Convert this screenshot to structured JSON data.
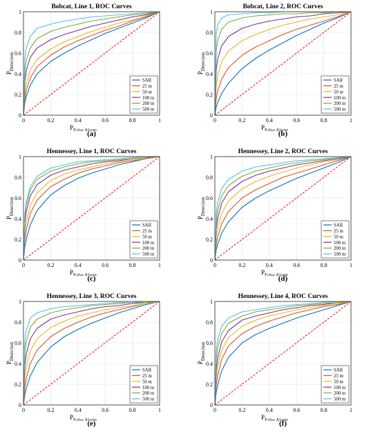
{
  "legend_labels": [
    "SAR",
    "25 m",
    "50 m",
    "100 m",
    "200 m",
    "500 m"
  ],
  "series_colors": [
    "#0072BD",
    "#D95319",
    "#EDB120",
    "#7E2F8E",
    "#77AC30",
    "#4DBEEE"
  ],
  "reference_line_color": "#FF0000",
  "x_ticks": [
    "0",
    "0.2",
    "0.4",
    "0.6",
    "0.8",
    "1"
  ],
  "y_ticks": [
    "0",
    "0.2",
    "0.4",
    "0.6",
    "0.8",
    "1"
  ],
  "xlabel_main": "P",
  "xlabel_sub": "False Alarm",
  "ylabel_main": "P",
  "ylabel_sub": "Detection",
  "chart_data": [
    {
      "type": "line",
      "title": "Bobcat, Line 1, ROC Curves",
      "caption": "(a)",
      "xlim": [
        0,
        1
      ],
      "ylim": [
        0,
        1
      ],
      "grid": true,
      "legend": "bottom-right",
      "x": [
        0,
        0.01,
        0.02,
        0.05,
        0.1,
        0.2,
        0.3,
        0.4,
        0.5,
        0.6,
        0.7,
        0.8,
        0.9,
        1
      ],
      "series": [
        {
          "name": "SAR",
          "values": [
            0,
            0.12,
            0.18,
            0.29,
            0.4,
            0.52,
            0.6,
            0.67,
            0.73,
            0.79,
            0.84,
            0.89,
            0.94,
            1
          ]
        },
        {
          "name": "25 m",
          "values": [
            0,
            0.16,
            0.24,
            0.36,
            0.47,
            0.58,
            0.66,
            0.72,
            0.77,
            0.82,
            0.86,
            0.91,
            0.95,
            1
          ]
        },
        {
          "name": "50 m",
          "values": [
            0,
            0.22,
            0.31,
            0.44,
            0.54,
            0.64,
            0.71,
            0.76,
            0.81,
            0.85,
            0.89,
            0.92,
            0.96,
            1
          ]
        },
        {
          "name": "100 m",
          "values": [
            0,
            0.33,
            0.43,
            0.56,
            0.65,
            0.73,
            0.78,
            0.82,
            0.86,
            0.89,
            0.92,
            0.95,
            0.97,
            1
          ]
        },
        {
          "name": "200 m",
          "values": [
            0,
            0.42,
            0.53,
            0.65,
            0.74,
            0.81,
            0.85,
            0.88,
            0.91,
            0.93,
            0.95,
            0.97,
            0.98,
            1
          ]
        },
        {
          "name": "500 m",
          "values": [
            0,
            0.55,
            0.65,
            0.76,
            0.84,
            0.88,
            0.91,
            0.93,
            0.95,
            0.96,
            0.97,
            0.98,
            0.99,
            1
          ]
        }
      ]
    },
    {
      "type": "line",
      "title": "Bobcat, Line 2, ROC Curves",
      "caption": "(b)",
      "xlim": [
        0,
        1
      ],
      "ylim": [
        0,
        1
      ],
      "grid": true,
      "legend": "bottom-right",
      "x": [
        0,
        0.01,
        0.02,
        0.05,
        0.1,
        0.2,
        0.3,
        0.4,
        0.5,
        0.6,
        0.7,
        0.8,
        0.9,
        1
      ],
      "series": [
        {
          "name": "SAR",
          "values": [
            0,
            0.08,
            0.12,
            0.21,
            0.31,
            0.45,
            0.55,
            0.63,
            0.7,
            0.77,
            0.83,
            0.89,
            0.94,
            1
          ]
        },
        {
          "name": "25 m",
          "values": [
            0,
            0.16,
            0.23,
            0.35,
            0.46,
            0.58,
            0.66,
            0.72,
            0.78,
            0.83,
            0.87,
            0.91,
            0.95,
            1
          ]
        },
        {
          "name": "50 m",
          "values": [
            0,
            0.28,
            0.38,
            0.52,
            0.62,
            0.72,
            0.78,
            0.83,
            0.87,
            0.9,
            0.93,
            0.95,
            0.97,
            1
          ]
        },
        {
          "name": "100 m",
          "values": [
            0,
            0.44,
            0.54,
            0.67,
            0.76,
            0.84,
            0.88,
            0.91,
            0.93,
            0.95,
            0.96,
            0.98,
            0.99,
            1
          ]
        },
        {
          "name": "200 m",
          "values": [
            0,
            0.62,
            0.72,
            0.83,
            0.9,
            0.94,
            0.96,
            0.97,
            0.98,
            0.98,
            0.99,
            0.99,
            1.0,
            1
          ]
        },
        {
          "name": "500 m",
          "values": [
            0,
            0.78,
            0.87,
            0.94,
            0.97,
            0.98,
            0.99,
            0.99,
            1.0,
            1.0,
            1.0,
            1.0,
            1.0,
            1
          ]
        }
      ]
    },
    {
      "type": "line",
      "title": "Hennessey, Line 1, ROC Curves",
      "caption": "(c)",
      "xlim": [
        0,
        1
      ],
      "ylim": [
        0,
        1
      ],
      "grid": true,
      "legend": "bottom-right",
      "x": [
        0,
        0.01,
        0.02,
        0.05,
        0.1,
        0.2,
        0.3,
        0.4,
        0.5,
        0.6,
        0.7,
        0.8,
        0.9,
        1
      ],
      "series": [
        {
          "name": "SAR",
          "values": [
            0,
            0.13,
            0.2,
            0.34,
            0.48,
            0.63,
            0.72,
            0.79,
            0.84,
            0.88,
            0.92,
            0.95,
            0.98,
            1
          ]
        },
        {
          "name": "25 m",
          "values": [
            0,
            0.2,
            0.29,
            0.45,
            0.58,
            0.71,
            0.78,
            0.84,
            0.88,
            0.91,
            0.94,
            0.96,
            0.98,
            1
          ]
        },
        {
          "name": "50 m",
          "values": [
            0,
            0.27,
            0.37,
            0.53,
            0.65,
            0.77,
            0.83,
            0.87,
            0.9,
            0.93,
            0.95,
            0.97,
            0.99,
            1
          ]
        },
        {
          "name": "100 m",
          "values": [
            0,
            0.36,
            0.47,
            0.62,
            0.73,
            0.82,
            0.87,
            0.9,
            0.93,
            0.95,
            0.96,
            0.98,
            0.99,
            1
          ]
        },
        {
          "name": "200 m",
          "values": [
            0,
            0.42,
            0.53,
            0.68,
            0.78,
            0.86,
            0.9,
            0.93,
            0.95,
            0.96,
            0.97,
            0.98,
            0.99,
            1
          ]
        },
        {
          "name": "500 m",
          "values": [
            0,
            0.45,
            0.56,
            0.71,
            0.81,
            0.89,
            0.92,
            0.95,
            0.96,
            0.97,
            0.98,
            0.99,
            1.0,
            1
          ]
        }
      ]
    },
    {
      "type": "line",
      "title": "Hennessey, Line 2, ROC Curves",
      "caption": "(d)",
      "xlim": [
        0,
        1
      ],
      "ylim": [
        0,
        1
      ],
      "grid": true,
      "legend": "bottom-right",
      "x": [
        0,
        0.01,
        0.02,
        0.05,
        0.1,
        0.2,
        0.3,
        0.4,
        0.5,
        0.6,
        0.7,
        0.8,
        0.9,
        1
      ],
      "series": [
        {
          "name": "SAR",
          "values": [
            0,
            0.1,
            0.15,
            0.26,
            0.37,
            0.51,
            0.6,
            0.67,
            0.73,
            0.79,
            0.84,
            0.89,
            0.94,
            1
          ]
        },
        {
          "name": "25 m",
          "values": [
            0,
            0.15,
            0.22,
            0.35,
            0.47,
            0.6,
            0.68,
            0.74,
            0.8,
            0.84,
            0.88,
            0.92,
            0.96,
            1
          ]
        },
        {
          "name": "50 m",
          "values": [
            0,
            0.22,
            0.31,
            0.45,
            0.57,
            0.69,
            0.76,
            0.81,
            0.85,
            0.89,
            0.92,
            0.95,
            0.97,
            1
          ]
        },
        {
          "name": "100 m",
          "values": [
            0,
            0.3,
            0.4,
            0.55,
            0.66,
            0.76,
            0.82,
            0.86,
            0.89,
            0.92,
            0.94,
            0.96,
            0.98,
            1
          ]
        },
        {
          "name": "200 m",
          "values": [
            0,
            0.37,
            0.48,
            0.62,
            0.72,
            0.81,
            0.86,
            0.89,
            0.92,
            0.94,
            0.96,
            0.97,
            0.99,
            1
          ]
        },
        {
          "name": "500 m",
          "values": [
            0,
            0.45,
            0.56,
            0.69,
            0.78,
            0.86,
            0.9,
            0.92,
            0.94,
            0.96,
            0.97,
            0.98,
            0.99,
            1
          ]
        }
      ]
    },
    {
      "type": "line",
      "title": "Hennessey, Line 3, ROC Curves",
      "caption": "(e)",
      "xlim": [
        0,
        1
      ],
      "ylim": [
        0,
        1
      ],
      "grid": true,
      "legend": "bottom-right",
      "x": [
        0,
        0.01,
        0.02,
        0.05,
        0.1,
        0.2,
        0.3,
        0.4,
        0.5,
        0.6,
        0.7,
        0.8,
        0.9,
        1
      ],
      "series": [
        {
          "name": "SAR",
          "values": [
            0,
            0.1,
            0.16,
            0.28,
            0.41,
            0.56,
            0.66,
            0.73,
            0.79,
            0.84,
            0.89,
            0.93,
            0.97,
            1
          ]
        },
        {
          "name": "25 m",
          "values": [
            0,
            0.17,
            0.25,
            0.4,
            0.53,
            0.66,
            0.74,
            0.8,
            0.85,
            0.89,
            0.92,
            0.95,
            0.98,
            1
          ]
        },
        {
          "name": "50 m",
          "values": [
            0,
            0.26,
            0.36,
            0.52,
            0.64,
            0.75,
            0.81,
            0.86,
            0.89,
            0.92,
            0.94,
            0.96,
            0.98,
            1
          ]
        },
        {
          "name": "100 m",
          "values": [
            0,
            0.38,
            0.49,
            0.64,
            0.74,
            0.83,
            0.87,
            0.9,
            0.93,
            0.95,
            0.96,
            0.98,
            0.99,
            1
          ]
        },
        {
          "name": "200 m",
          "values": [
            0,
            0.5,
            0.61,
            0.75,
            0.83,
            0.89,
            0.92,
            0.94,
            0.96,
            0.97,
            0.98,
            0.99,
            0.99,
            1
          ]
        },
        {
          "name": "500 m",
          "values": [
            0,
            0.62,
            0.72,
            0.84,
            0.89,
            0.93,
            0.95,
            0.96,
            0.97,
            0.98,
            0.99,
            0.99,
            1.0,
            1
          ]
        }
      ]
    },
    {
      "type": "line",
      "title": "Hennessey, Line 4, ROC Curves",
      "caption": "(f)",
      "xlim": [
        0,
        1
      ],
      "ylim": [
        0,
        1
      ],
      "grid": true,
      "legend": "bottom-right",
      "x": [
        0,
        0.01,
        0.02,
        0.05,
        0.1,
        0.2,
        0.3,
        0.4,
        0.5,
        0.6,
        0.7,
        0.8,
        0.9,
        1
      ],
      "series": [
        {
          "name": "SAR",
          "values": [
            0,
            0.12,
            0.19,
            0.33,
            0.46,
            0.6,
            0.68,
            0.74,
            0.79,
            0.84,
            0.88,
            0.92,
            0.96,
            1
          ]
        },
        {
          "name": "25 m",
          "values": [
            0,
            0.19,
            0.28,
            0.44,
            0.57,
            0.69,
            0.76,
            0.81,
            0.85,
            0.89,
            0.92,
            0.95,
            0.97,
            1
          ]
        },
        {
          "name": "50 m",
          "values": [
            0,
            0.26,
            0.37,
            0.53,
            0.65,
            0.76,
            0.82,
            0.86,
            0.89,
            0.92,
            0.94,
            0.96,
            0.98,
            1
          ]
        },
        {
          "name": "100 m",
          "values": [
            0,
            0.34,
            0.45,
            0.61,
            0.72,
            0.82,
            0.86,
            0.89,
            0.92,
            0.94,
            0.96,
            0.97,
            0.99,
            1
          ]
        },
        {
          "name": "200 m",
          "values": [
            0,
            0.43,
            0.55,
            0.69,
            0.79,
            0.86,
            0.9,
            0.92,
            0.94,
            0.96,
            0.97,
            0.98,
            0.99,
            1
          ]
        },
        {
          "name": "500 m",
          "values": [
            0,
            0.52,
            0.63,
            0.76,
            0.84,
            0.9,
            0.92,
            0.94,
            0.96,
            0.97,
            0.98,
            0.99,
            1.0,
            1
          ]
        }
      ]
    }
  ]
}
